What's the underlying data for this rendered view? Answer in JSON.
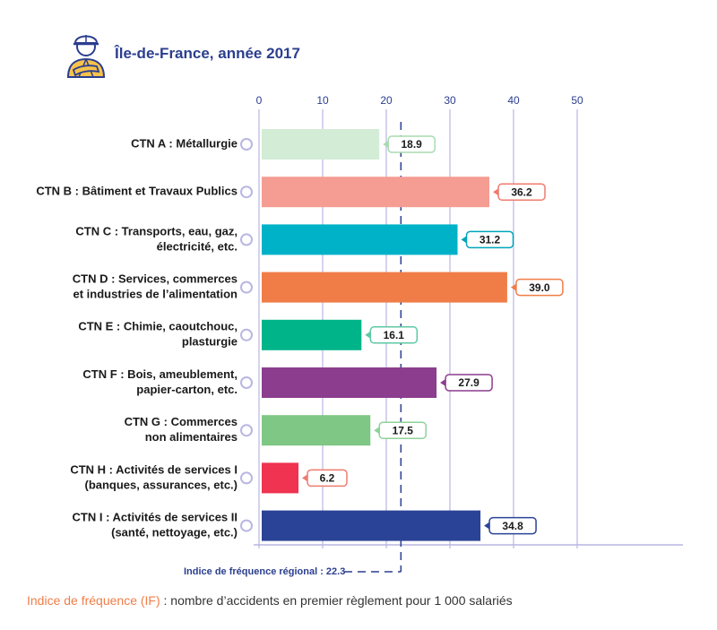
{
  "header": {
    "title": "Île-de-France, année 2017",
    "icon": "construction-worker-icon"
  },
  "footnote": {
    "term": "Indice de fréquence (IF)",
    "text": " : nombre d’accidents en premier règlement pour 1 000 salariés"
  },
  "chart_data": {
    "type": "bar",
    "orientation": "horizontal",
    "xlim": [
      0,
      50
    ],
    "ticks": [
      "0",
      "10",
      "20",
      "30",
      "40",
      "50"
    ],
    "tick_values": [
      0,
      10,
      20,
      30,
      40,
      50
    ],
    "grid": true,
    "axis_color": "#b9b6e2",
    "categories": [
      [
        "CTN A : Métallurgie"
      ],
      [
        "CTN B : Bâtiment et Travaux Publics"
      ],
      [
        "CTN C : Transports, eau, gaz,",
        "électricité, etc."
      ],
      [
        "CTN D : Services, commerces",
        "et industries de l’alimentation"
      ],
      [
        "CTN E : Chimie, caoutchouc,",
        "plasturgie"
      ],
      [
        "CTN F : Bois, ameublement,",
        "papier-carton, etc."
      ],
      [
        "CTN G : Commerces",
        "non alimentaires"
      ],
      [
        "CTN H : Activités de services I",
        "(banques, assurances, etc.)"
      ],
      [
        "CTN I : Activités de services II",
        "(santé, nettoyage, etc.)"
      ]
    ],
    "values": [
      18.9,
      36.2,
      31.2,
      39.0,
      16.1,
      27.9,
      17.5,
      6.2,
      34.8
    ],
    "labels": [
      "18.9",
      "36.2",
      "31.2",
      "39.0",
      "16.1",
      "27.9",
      "17.5",
      "6.2",
      "34.8"
    ],
    "colors": [
      "#d3ecd6",
      "#f59d92",
      "#00b2c7",
      "#f07d48",
      "#00b48a",
      "#8c3d8e",
      "#7fc784",
      "#ef3350",
      "#2b4397"
    ],
    "label_border_colors": [
      "#a8dbaf",
      "#ef7b6e",
      "#00a6bb",
      "#f07d48",
      "#5fc8a4",
      "#8c3d8e",
      "#8fd19a",
      "#ef7b6e",
      "#2b4397"
    ],
    "reference": {
      "label": "Indice de fréquence régional : 22.3",
      "value": 22.3,
      "color": "#2b3e8f"
    }
  }
}
